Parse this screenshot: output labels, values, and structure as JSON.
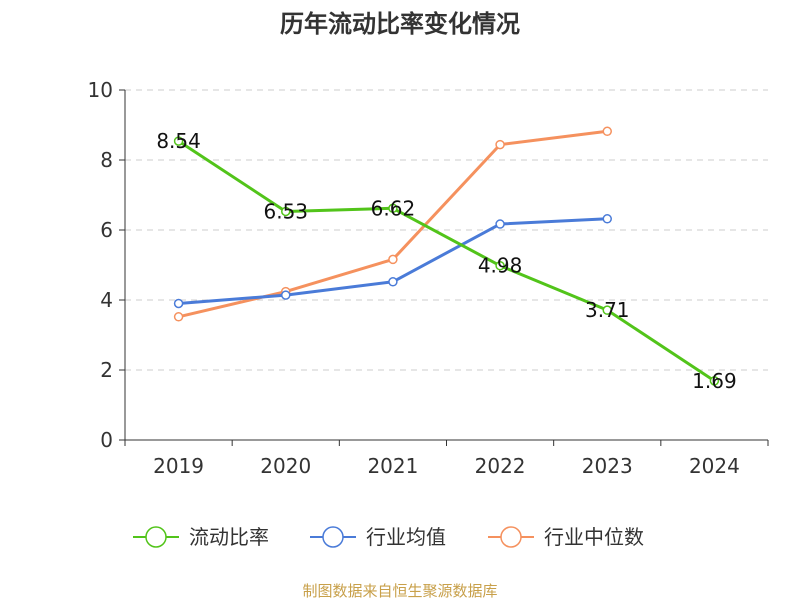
{
  "chart_data": {
    "type": "line",
    "title": "历年流动比率变化情况",
    "categories": [
      "2019",
      "2020",
      "2021",
      "2022",
      "2023",
      "2024"
    ],
    "ylim": [
      0,
      10
    ],
    "yticks": [
      0,
      2,
      4,
      6,
      8,
      10
    ],
    "grid": true,
    "legend_position": "bottom",
    "series": [
      {
        "name": "流动比率",
        "color": "#52c41a",
        "values": [
          8.54,
          6.53,
          6.62,
          4.98,
          3.71,
          1.69
        ],
        "show_labels": true
      },
      {
        "name": "行业均值",
        "color": "#4a7bd8",
        "values": [
          3.9,
          4.14,
          4.52,
          6.17,
          6.32,
          null
        ],
        "show_labels": false
      },
      {
        "name": "行业中位数",
        "color": "#f5915e",
        "values": [
          3.52,
          4.24,
          5.16,
          8.44,
          8.82,
          null
        ],
        "show_labels": false
      }
    ],
    "data_labels": [
      "8.54",
      "6.53",
      "6.62",
      "4.98",
      "3.71",
      "1.69"
    ]
  },
  "source": {
    "text": "制图数据来自恒生聚源数据库",
    "color": "#c8a04a"
  }
}
